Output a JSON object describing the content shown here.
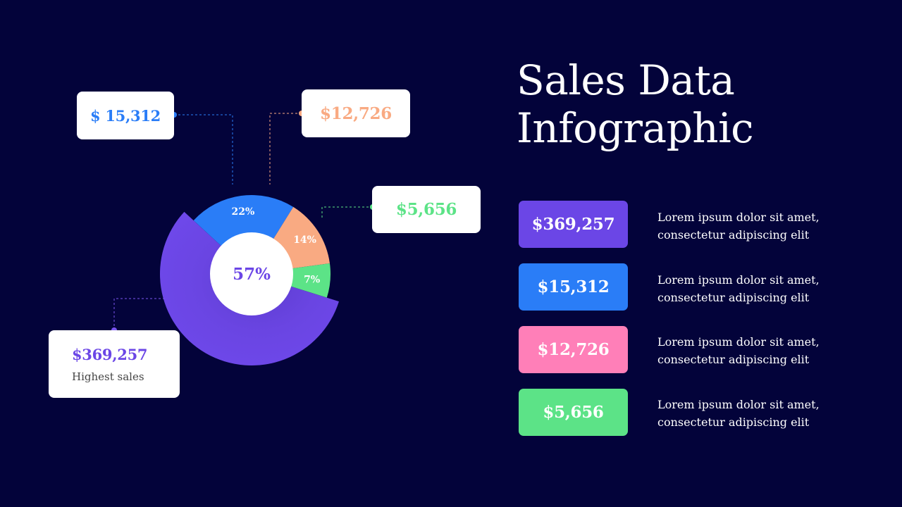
{
  "title": {
    "line1": "Sales Data",
    "line2": "Infographic"
  },
  "colors": {
    "background": "#03033a",
    "purple": "#6b46e6",
    "blue": "#2a7df7",
    "peach": "#f9aa82",
    "green": "#5ce387",
    "pink": "#ff7fb8"
  },
  "chart_data": {
    "type": "pie",
    "variant": "exploded-donut",
    "slices": [
      {
        "label": "57%",
        "value": 57,
        "color": "#6b46e6",
        "amount": "$369,257"
      },
      {
        "label": "22%",
        "value": 22,
        "color": "#2a7df7",
        "amount": "$ 15,312"
      },
      {
        "label": "14%",
        "value": 14,
        "color": "#f9aa82",
        "amount": "$12,726"
      },
      {
        "label": "7%",
        "value": 7,
        "color": "#5ce387",
        "amount": "$5,656"
      }
    ],
    "center_label": "57%"
  },
  "callouts": {
    "blue": "$ 15,312",
    "peach": "$12,726",
    "green": "$5,656",
    "purple": {
      "value": "$369,257",
      "caption": "Highest sales"
    }
  },
  "legend": [
    {
      "value": "$369,257",
      "color": "#6b46e6",
      "line1": "Lorem ipsum dolor sit amet,",
      "line2": "consectetur adipiscing elit"
    },
    {
      "value": "$15,312",
      "color": "#2a7df7",
      "line1": "Lorem ipsum dolor sit amet,",
      "line2": "consectetur adipiscing elit"
    },
    {
      "value": "$12,726",
      "color": "#ff7fb8",
      "line1": "Lorem ipsum dolor sit amet,",
      "line2": "consectetur adipiscing elit"
    },
    {
      "value": "$5,656",
      "color": "#5ce387",
      "line1": "Lorem ipsum dolor sit amet,",
      "line2": "consectetur adipiscing elit"
    }
  ]
}
